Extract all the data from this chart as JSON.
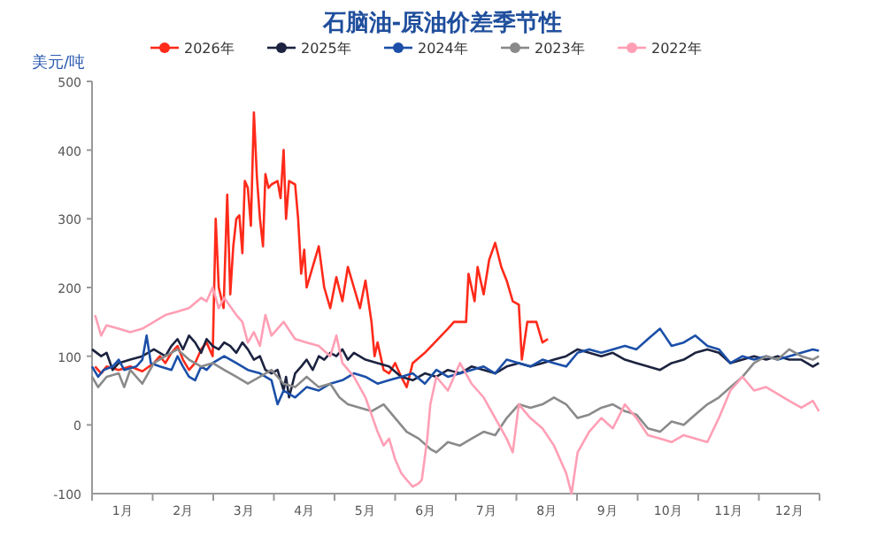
{
  "chart_data": {
    "type": "line",
    "title": "石脑油-原油价差季节性",
    "ylabel": "美元/吨",
    "legend": "top",
    "xlim": [
      0.5,
      12.5
    ],
    "xticks": [
      {
        "value": 0.5,
        "label": null
      },
      {
        "value": 1,
        "label": "1月"
      },
      {
        "value": 1.5,
        "label": null
      },
      {
        "value": 2,
        "label": "2月"
      },
      {
        "value": 2.5,
        "label": null
      },
      {
        "value": 3,
        "label": "3月"
      },
      {
        "value": 3.5,
        "label": null
      },
      {
        "value": 4,
        "label": "4月"
      },
      {
        "value": 4.5,
        "label": null
      },
      {
        "value": 5,
        "label": "5月"
      },
      {
        "value": 5.5,
        "label": null
      },
      {
        "value": 6,
        "label": "6月"
      },
      {
        "value": 6.5,
        "label": null
      },
      {
        "value": 7,
        "label": "7月"
      },
      {
        "value": 7.5,
        "label": null
      },
      {
        "value": 8,
        "label": "8月"
      },
      {
        "value": 8.5,
        "label": null
      },
      {
        "value": 9,
        "label": "9月"
      },
      {
        "value": 9.5,
        "label": null
      },
      {
        "value": 10,
        "label": "10月"
      },
      {
        "value": 10.5,
        "label": null
      },
      {
        "value": 11,
        "label": "11月"
      },
      {
        "value": 11.5,
        "label": null
      },
      {
        "value": 12,
        "label": "12月"
      },
      {
        "value": 12.5,
        "label": null
      }
    ],
    "ylim": [
      -100,
      500
    ],
    "yticks": [
      -100,
      0,
      100,
      200,
      300,
      400,
      500
    ],
    "grid": false,
    "series": [
      {
        "name": "2026年",
        "color": "#ff2a1a",
        "x": [
          0.55,
          0.65,
          0.74,
          0.94,
          1.13,
          1.33,
          1.52,
          1.62,
          1.71,
          1.81,
          1.91,
          2.0,
          2.1,
          2.2,
          2.3,
          2.39,
          2.49,
          2.54,
          2.59,
          2.67,
          2.73,
          2.78,
          2.83,
          2.88,
          2.93,
          2.98,
          3.02,
          3.07,
          3.12,
          3.17,
          3.22,
          3.27,
          3.32,
          3.36,
          3.41,
          3.46,
          3.56,
          3.61,
          3.66,
          3.7,
          3.75,
          3.85,
          3.9,
          3.95,
          4.0,
          4.04,
          4.14,
          4.24,
          4.33,
          4.43,
          4.53,
          4.63,
          4.72,
          4.82,
          4.92,
          5.01,
          5.11,
          5.16,
          5.21,
          5.31,
          5.4,
          5.5,
          5.6,
          5.69,
          5.79,
          5.99,
          6.37,
          6.47,
          6.67,
          6.71,
          6.81,
          6.86,
          6.96,
          7.05,
          7.15,
          7.25,
          7.34,
          7.44,
          7.54,
          7.59,
          7.68,
          7.83,
          7.93,
          8.02
        ],
        "values": [
          85,
          75,
          85,
          80,
          85,
          78,
          90,
          100,
          90,
          105,
          115,
          95,
          80,
          90,
          110,
          120,
          100,
          300,
          200,
          170,
          335,
          190,
          260,
          300,
          305,
          250,
          355,
          345,
          290,
          455,
          360,
          300,
          260,
          365,
          345,
          350,
          355,
          330,
          400,
          300,
          355,
          350,
          300,
          220,
          255,
          200,
          230,
          260,
          200,
          170,
          215,
          180,
          230,
          200,
          170,
          210,
          150,
          100,
          120,
          80,
          75,
          90,
          70,
          55,
          90,
          105,
          140,
          150,
          150,
          220,
          180,
          230,
          190,
          240,
          265,
          230,
          210,
          180,
          175,
          95,
          150,
          150,
          120,
          125
        ]
      },
      {
        "name": "2025年",
        "color": "#1c2340",
        "x": [
          0.5,
          0.65,
          0.74,
          0.84,
          0.94,
          1.13,
          1.33,
          1.52,
          1.71,
          1.81,
          1.91,
          2.0,
          2.1,
          2.2,
          2.3,
          2.39,
          2.49,
          2.59,
          2.68,
          2.78,
          2.88,
          2.98,
          3.07,
          3.17,
          3.27,
          3.36,
          3.46,
          3.56,
          3.66,
          3.7,
          3.75,
          3.85,
          3.95,
          4.04,
          4.14,
          4.24,
          4.33,
          4.43,
          4.53,
          4.63,
          4.72,
          4.82,
          5.01,
          5.21,
          5.4,
          5.6,
          5.79,
          5.99,
          6.18,
          6.37,
          6.57,
          6.76,
          6.96,
          7.15,
          7.34,
          7.54,
          7.73,
          7.93,
          8.12,
          8.32,
          8.51,
          8.7,
          8.9,
          9.09,
          9.29,
          9.48,
          9.67,
          9.87,
          10.06,
          10.26,
          10.45,
          10.65,
          10.84,
          11.03,
          11.23,
          11.42,
          11.62,
          11.81,
          12.0,
          12.2,
          12.39,
          12.49
        ],
        "values": [
          110,
          100,
          105,
          80,
          90,
          95,
          100,
          110,
          100,
          115,
          125,
          110,
          130,
          120,
          105,
          125,
          115,
          110,
          120,
          115,
          105,
          120,
          110,
          95,
          100,
          80,
          75,
          80,
          50,
          70,
          40,
          75,
          85,
          95,
          80,
          100,
          95,
          105,
          100,
          110,
          95,
          105,
          95,
          90,
          85,
          70,
          65,
          75,
          70,
          80,
          75,
          85,
          80,
          75,
          85,
          90,
          85,
          90,
          95,
          100,
          110,
          105,
          100,
          105,
          95,
          90,
          85,
          80,
          90,
          95,
          105,
          110,
          105,
          90,
          95,
          100,
          95,
          100,
          95,
          95,
          85,
          90
        ]
      },
      {
        "name": "2024年",
        "color": "#1b4fa8",
        "x": [
          0.5,
          0.6,
          0.69,
          0.84,
          0.94,
          1.03,
          1.23,
          1.33,
          1.4,
          1.47,
          1.62,
          1.81,
          1.91,
          2.0,
          2.1,
          2.2,
          2.3,
          2.39,
          2.49,
          2.68,
          2.88,
          3.07,
          3.27,
          3.46,
          3.56,
          3.66,
          3.85,
          4.04,
          4.24,
          4.43,
          4.63,
          4.82,
          5.01,
          5.21,
          5.4,
          5.6,
          5.79,
          5.99,
          6.18,
          6.37,
          6.57,
          6.76,
          6.96,
          7.15,
          7.34,
          7.54,
          7.73,
          7.93,
          8.12,
          8.32,
          8.51,
          8.7,
          8.9,
          9.09,
          9.29,
          9.48,
          9.67,
          9.87,
          10.06,
          10.26,
          10.45,
          10.65,
          10.84,
          11.03,
          11.23,
          11.42,
          11.62,
          11.81,
          12.0,
          12.2,
          12.39,
          12.49
        ],
        "values": [
          85,
          70,
          80,
          85,
          95,
          80,
          85,
          95,
          130,
          90,
          85,
          80,
          100,
          85,
          70,
          65,
          85,
          80,
          90,
          100,
          90,
          80,
          75,
          65,
          30,
          50,
          40,
          55,
          50,
          60,
          65,
          75,
          70,
          60,
          65,
          70,
          75,
          60,
          80,
          70,
          75,
          80,
          85,
          75,
          95,
          90,
          85,
          95,
          90,
          85,
          105,
          110,
          105,
          110,
          115,
          110,
          125,
          140,
          115,
          120,
          130,
          115,
          110,
          90,
          100,
          95,
          100,
          95,
          100,
          105,
          110,
          108
        ]
      },
      {
        "name": "2023年",
        "color": "#8a8a8a",
        "x": [
          0.5,
          0.6,
          0.74,
          0.94,
          1.03,
          1.13,
          1.33,
          1.52,
          1.71,
          1.91,
          2.1,
          2.3,
          2.49,
          2.68,
          2.88,
          3.07,
          3.27,
          3.46,
          3.66,
          3.85,
          4.04,
          4.24,
          4.43,
          4.58,
          4.72,
          4.92,
          5.11,
          5.31,
          5.5,
          5.69,
          5.89,
          6.08,
          6.18,
          6.37,
          6.57,
          6.76,
          6.96,
          7.15,
          7.34,
          7.54,
          7.73,
          7.93,
          8.12,
          8.32,
          8.51,
          8.7,
          8.9,
          9.09,
          9.29,
          9.48,
          9.67,
          9.87,
          10.06,
          10.26,
          10.45,
          10.65,
          10.84,
          11.03,
          11.23,
          11.42,
          11.62,
          11.81,
          12.0,
          12.2,
          12.39,
          12.49
        ],
        "values": [
          70,
          55,
          70,
          75,
          55,
          80,
          60,
          90,
          100,
          110,
          95,
          85,
          90,
          80,
          70,
          60,
          70,
          80,
          60,
          55,
          70,
          55,
          60,
          40,
          30,
          25,
          20,
          30,
          10,
          -10,
          -20,
          -35,
          -40,
          -25,
          -30,
          -20,
          -10,
          -15,
          10,
          30,
          25,
          30,
          40,
          30,
          10,
          15,
          25,
          30,
          20,
          15,
          -5,
          -10,
          5,
          0,
          15,
          30,
          40,
          55,
          70,
          90,
          100,
          95,
          110,
          100,
          95,
          100
        ]
      },
      {
        "name": "2022年",
        "color": "#ff9fb5",
        "x": [
          0.55,
          0.65,
          0.74,
          0.94,
          1.13,
          1.33,
          1.52,
          1.71,
          1.91,
          2.1,
          2.3,
          2.39,
          2.49,
          2.59,
          2.68,
          2.88,
          2.98,
          3.07,
          3.17,
          3.27,
          3.36,
          3.46,
          3.66,
          3.85,
          4.04,
          4.24,
          4.43,
          4.53,
          4.63,
          4.82,
          5.01,
          5.21,
          5.31,
          5.4,
          5.5,
          5.6,
          5.69,
          5.79,
          5.89,
          5.94,
          6.03,
          6.08,
          6.18,
          6.37,
          6.57,
          6.76,
          6.96,
          7.15,
          7.34,
          7.44,
          7.54,
          7.73,
          7.93,
          8.12,
          8.32,
          8.41,
          8.51,
          8.7,
          8.9,
          9.09,
          9.29,
          9.48,
          9.67,
          9.87,
          10.06,
          10.26,
          10.45,
          10.65,
          10.84,
          11.03,
          11.23,
          11.42,
          11.62,
          11.81,
          12.0,
          12.2,
          12.39,
          12.49
        ],
        "values": [
          160,
          130,
          145,
          140,
          135,
          140,
          150,
          160,
          165,
          170,
          185,
          180,
          200,
          170,
          185,
          160,
          150,
          120,
          135,
          115,
          160,
          130,
          150,
          125,
          120,
          115,
          100,
          130,
          90,
          70,
          40,
          -10,
          -30,
          -20,
          -50,
          -70,
          -80,
          -90,
          -85,
          -80,
          -20,
          30,
          70,
          50,
          90,
          60,
          40,
          10,
          -20,
          -40,
          30,
          10,
          -5,
          -30,
          -70,
          -100,
          -40,
          -10,
          10,
          -5,
          30,
          10,
          -15,
          -20,
          -25,
          -15,
          -20,
          -25,
          10,
          50,
          70,
          50,
          55,
          45,
          35,
          25,
          35,
          20
        ]
      }
    ]
  }
}
